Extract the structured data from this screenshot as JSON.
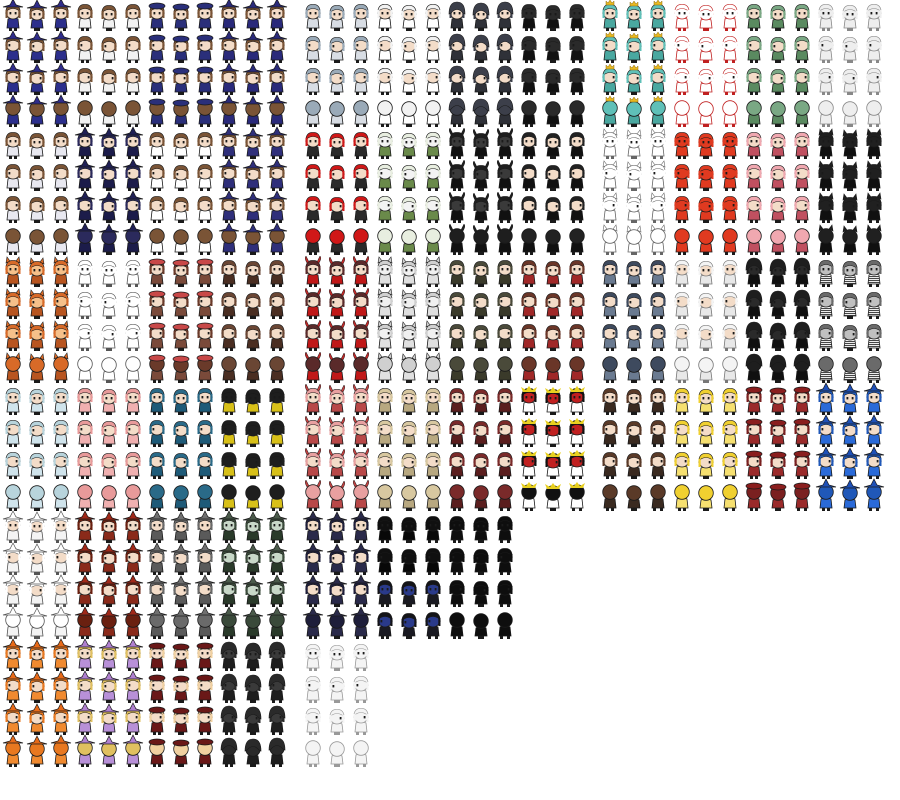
{
  "sheet": {
    "kind": "character sprite sheet",
    "background": "#ffffff",
    "cell_grid": {
      "columns_per_block": 12,
      "rows_per_block": 8
    },
    "blocks": [
      {
        "id": "b0",
        "groups": [
          {
            "design": "brown-hair-girl",
            "hair": "#7a5436",
            "outfit": "#2c2f8c",
            "hat": "witch",
            "hatColor": "#2f2c8a",
            "skin": "#f3dcc8"
          },
          {
            "design": "brown-hair-girl",
            "hair": "#7a5436",
            "outfit": "#f2f2f2",
            "hat": "none",
            "skin": "#f3dcc8"
          },
          {
            "design": "brown-hair-sailor",
            "hair": "#7a5436",
            "outfit": "#2a2f7a",
            "hat": "beret",
            "hatColor": "#2a2f7a",
            "skin": "#f3dcc8"
          },
          {
            "design": "blue-witch",
            "hair": "#7a5436",
            "outfit": "#2a2a7a",
            "hat": "witch",
            "hatColor": "#2a2a7a",
            "skin": "#f3dcc8"
          },
          {
            "design": "brown-hair-white",
            "hair": "#7a5436",
            "outfit": "#e8e8f0",
            "hat": "none",
            "skin": "#f3dcc8"
          },
          {
            "design": "navy-witch",
            "hair": "#2b2a5c",
            "outfit": "#1c1c4a",
            "hat": "witch",
            "hatColor": "#1f1f55",
            "skin": "#f3dcc8"
          },
          {
            "design": "brown-hair-dress",
            "hair": "#7a5436",
            "outfit": "#ffffff",
            "hat": "none",
            "skin": "#f3dcc8"
          },
          {
            "design": "brown-witch",
            "hair": "#7a5436",
            "outfit": "#2f2f7a",
            "hat": "witch",
            "hatColor": "#2f2f7a",
            "skin": "#f3dcc8"
          }
        ]
      },
      {
        "id": "b1",
        "groups": [
          {
            "design": "silver-hair",
            "hair": "#9aaab8",
            "outfit": "#d8dde4",
            "hat": "none",
            "skin": "#f3dcc8"
          },
          {
            "design": "white-fluffy",
            "hair": "#f2f2f2",
            "outfit": "#ffffff",
            "hat": "none",
            "skin": "#f3dcc8"
          },
          {
            "design": "dark-hood",
            "hair": "#3c3f4a",
            "outfit": "#2f3138",
            "hat": "hood",
            "hatColor": "#3c3f4a",
            "skin": "#f3dcc8"
          },
          {
            "design": "black-shadow",
            "hair": "#2a2a2a",
            "outfit": "#111111",
            "hat": "none",
            "skin": "#2a2a2a"
          },
          {
            "design": "red-hair",
            "hair": "#d01818",
            "outfit": "#2a2a2a",
            "hat": "none",
            "skin": "#f3dcc8"
          },
          {
            "design": "white-bird",
            "hair": "#e8eee0",
            "outfit": "#6a8a4a",
            "hat": "none",
            "skin": "#f3f3f3"
          },
          {
            "design": "black-horned",
            "hair": "#1e1e1e",
            "outfit": "#111111",
            "hat": "horns",
            "hatColor": "#1e1e1e",
            "skin": "#3a3a3a"
          },
          {
            "design": "dark-blob",
            "hair": "#222222",
            "outfit": "#111111",
            "hat": "none",
            "skin": "#f3dcc8"
          }
        ]
      },
      {
        "id": "b2",
        "groups": [
          {
            "design": "teal-crown",
            "hair": "#5fc0b8",
            "outfit": "#4aa8a0",
            "hat": "crown",
            "hatColor": "#e8b820",
            "skin": "#f3dcc8"
          },
          {
            "design": "white-red-outline",
            "hair": "#ffffff",
            "outfit": "#ffffff",
            "hat": "none",
            "skin": "#ffffff",
            "outline": "#c02020"
          },
          {
            "design": "green-hair",
            "hair": "#7aa884",
            "outfit": "#5a8a60",
            "hat": "none",
            "skin": "#f3dcc8"
          },
          {
            "design": "white-dolphin",
            "hair": "#eeeeee",
            "outfit": "#eeeeee",
            "hat": "none",
            "skin": "#eeeeee",
            "outline": "#888888"
          },
          {
            "design": "white-bear",
            "hair": "#ffffff",
            "outfit": "#ffffff",
            "hat": "ears",
            "hatColor": "#ffffff",
            "skin": "#ffffff",
            "outline": "#666666"
          },
          {
            "design": "red-octopus",
            "hair": "#e03a20",
            "outfit": "#e03a20",
            "hat": "none",
            "skin": "#e03a20"
          },
          {
            "design": "pink-hair",
            "hair": "#f0a8b0",
            "outfit": "#c05060",
            "hat": "none",
            "skin": "#f3dcc8"
          },
          {
            "design": "black-cat",
            "hair": "#202020",
            "outfit": "#101010",
            "hat": "ears",
            "hatColor": "#202020",
            "skin": "#202020"
          }
        ]
      },
      {
        "id": "b3",
        "groups": [
          {
            "design": "orange-fox",
            "hair": "#d86a28",
            "outfit": "#b85520",
            "hat": "ears",
            "hatColor": "#d86a28",
            "skin": "#f6c08a"
          },
          {
            "design": "white-ghost",
            "hair": "#ffffff",
            "outfit": "#ffffff",
            "hat": "none",
            "skin": "#ffffff",
            "outline": "#555555"
          },
          {
            "design": "red-cap",
            "hair": "#6a3a2a",
            "outfit": "#7a4a3a",
            "hat": "cap",
            "hatColor": "#c84848",
            "skin": "#f3dcc8"
          },
          {
            "design": "brown-pony",
            "hair": "#6a4634",
            "outfit": "#4a2e22",
            "hat": "none",
            "skin": "#f3dcc8"
          },
          {
            "design": "ice-blue",
            "hair": "#b8d4dc",
            "outfit": "#d0e4ec",
            "hat": "none",
            "skin": "#f3dcc8"
          },
          {
            "design": "pink-swirl",
            "hair": "#e89a9a",
            "outfit": "#f0b0b0",
            "hat": "none",
            "skin": "#f3dcc8"
          },
          {
            "design": "teal-bob",
            "hair": "#2a6a88",
            "outfit": "#1e5a78",
            "hat": "none",
            "skin": "#f3dcc8"
          },
          {
            "design": "black-snake",
            "hair": "#1e1e1e",
            "outfit": "#d8c018",
            "hat": "none",
            "skin": "#1e1e1e"
          }
        ]
      },
      {
        "id": "b4",
        "groups": [
          {
            "design": "red-antlers",
            "hair": "#5a2a2a",
            "outfit": "#c01818",
            "hat": "antlers",
            "hatColor": "#c02828",
            "skin": "#f3dcc8"
          },
          {
            "design": "grey-rabbit",
            "hair": "#d0d0d0",
            "outfit": "#e0e0e0",
            "hat": "ears",
            "hatColor": "#d0d0d0",
            "skin": "#f0f0f0"
          },
          {
            "design": "olive-hair",
            "hair": "#4a4a3a",
            "outfit": "#3a3a2a",
            "hat": "none",
            "skin": "#f3dcc8"
          },
          {
            "design": "brown-twintail",
            "hair": "#6a3628",
            "outfit": "#a02828",
            "hat": "none",
            "skin": "#f3dcc8"
          },
          {
            "design": "pink-devil",
            "hair": "#e8a0a0",
            "outfit": "#b84848",
            "hat": "horns",
            "hatColor": "#c04040",
            "skin": "#f3dcc8"
          },
          {
            "design": "blonde-bob",
            "hair": "#d8c8a0",
            "outfit": "#b8a880",
            "hat": "none",
            "skin": "#f3dcc8"
          },
          {
            "design": "maroon-hair",
            "hair": "#7a2a2a",
            "outfit": "#5a1e1e",
            "hat": "none",
            "skin": "#f3dcc8"
          },
          {
            "design": "penguin",
            "hair": "#111111",
            "outfit": "#ffffff",
            "hat": "crest",
            "hatColor": "#e8d020",
            "skin": "#c02020"
          }
        ]
      },
      {
        "id": "b5",
        "groups": [
          {
            "design": "slate-hair",
            "hair": "#3e4a5e",
            "outfit": "#6a7a90",
            "hat": "none",
            "skin": "#f3dcc8"
          },
          {
            "design": "white-shaggy",
            "hair": "#f4f4f4",
            "outfit": "#e8e8e8",
            "hat": "none",
            "skin": "#f3dcc8",
            "outline": "#777777"
          },
          {
            "design": "black-cloak",
            "hair": "#1e1e1e",
            "outfit": "#101010",
            "hat": "hood",
            "hatColor": "#1e1e1e",
            "skin": "#2a2a2a"
          },
          {
            "design": "grey-striped",
            "hair": "#6a6a6a",
            "outfit": "#eeeeee",
            "hat": "none",
            "skin": "#c0c0c0",
            "stripes": true
          },
          {
            "design": "brown-long",
            "hair": "#5a3a28",
            "outfit": "#3a2a20",
            "hat": "none",
            "skin": "#f3dcc8"
          },
          {
            "design": "blonde-curls",
            "hair": "#f0d030",
            "outfit": "#f6e070",
            "hat": "none",
            "skin": "#f3dcc8"
          },
          {
            "design": "maroon-beret",
            "hair": "#7a2020",
            "outfit": "#9a2a2a",
            "hat": "beret",
            "hatColor": "#8a1e1e",
            "skin": "#f3dcc8"
          },
          {
            "design": "blue-witch-hat",
            "hair": "#2058b8",
            "outfit": "#2a6ad8",
            "hat": "witch",
            "hatColor": "#1e50b8",
            "skin": "#f3dcc8"
          }
        ]
      },
      {
        "id": "b6",
        "groups": [
          {
            "design": "white-witch",
            "hair": "#ffffff",
            "outfit": "#f4f4f4",
            "hat": "witch",
            "hatColor": "#ffffff",
            "skin": "#f3dcc8",
            "outline": "#555555"
          },
          {
            "design": "red-witch",
            "hair": "#6a2010",
            "outfit": "#8a2a1a",
            "hat": "witch",
            "hatColor": "#a02818",
            "skin": "#f3dcc8"
          },
          {
            "design": "grey-witch",
            "hair": "#6a6a6a",
            "outfit": "#5a5a5a",
            "hat": "witch",
            "hatColor": "#707070",
            "skin": "#f3dcc8"
          },
          {
            "design": "green-witch",
            "hair": "#3a4a3a",
            "outfit": "#2a3a2a",
            "hat": "witch",
            "hatColor": "#4a5a4a",
            "skin": "#c8d8c8"
          },
          {
            "design": "orange-witch",
            "hair": "#e87820",
            "outfit": "#f08a30",
            "hat": "witch",
            "hatColor": "#e86a18",
            "skin": "#f3dcc8"
          },
          {
            "design": "purple-witch",
            "hair": "#e0c060",
            "outfit": "#b890d8",
            "hat": "witch",
            "hatColor": "#b080d0",
            "skin": "#f3dcc8"
          },
          {
            "design": "maroon-hat",
            "hair": "#f0d0a0",
            "outfit": "#6a1818",
            "hat": "cap",
            "hatColor": "#6a1818",
            "skin": "#f3dcc8"
          },
          {
            "design": "dark-eye",
            "hair": "#2a2a2a",
            "outfit": "#1e1e1e",
            "hat": "hood",
            "hatColor": "#2a2a2a",
            "skin": "#3a3a3a"
          }
        ]
      },
      {
        "id": "b7",
        "groups": [
          {
            "design": "navy-witch-2",
            "hair": "#1e1e3a",
            "outfit": "#2a2a4a",
            "hat": "witch",
            "hatColor": "#2a2a4a",
            "skin": "#f3dcc8"
          },
          {
            "design": "shadow-girl",
            "hair": "#101010",
            "outfit": "#080808",
            "hat": "none",
            "skin": "#101010"
          },
          {
            "design": "black-blue-eye",
            "hair": "#141418",
            "outfit": "#1a1a22",
            "hat": "none",
            "skin": "#2a3a8a"
          },
          {
            "design": "black-silhouette",
            "hair": "#0e0e0e",
            "outfit": "#0e0e0e",
            "hat": "none",
            "skin": "#0e0e0e"
          },
          {
            "design": "white-shark",
            "hair": "#f4f4f4",
            "outfit": "#f4f4f4",
            "hat": "none",
            "skin": "#f4f4f4",
            "outline": "#999999"
          }
        ]
      }
    ]
  }
}
